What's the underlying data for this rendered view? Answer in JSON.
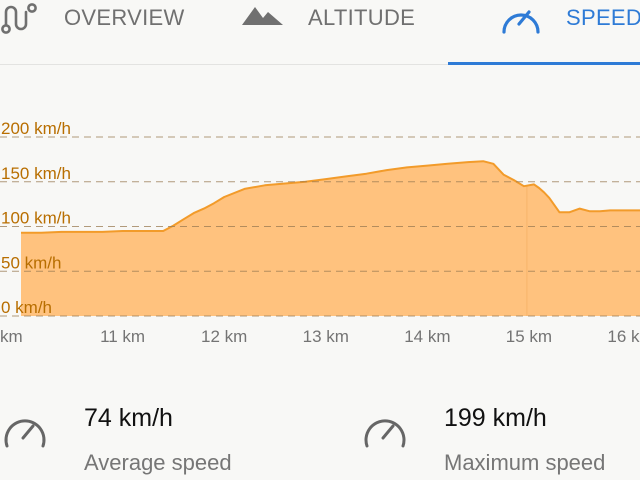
{
  "tabs": {
    "overview": {
      "label": "OVERVIEW",
      "icon": "route-icon"
    },
    "altitude": {
      "label": "ALTITUDE",
      "icon": "mountain-icon"
    },
    "speed": {
      "label": "SPEED",
      "icon": "speedometer-icon",
      "selected": true
    }
  },
  "colors": {
    "accent": "#2e7bd6",
    "fill": "#ffc27e",
    "line": "#f29b2a",
    "axis_label": "#b86e00",
    "tab_inactive": "#707070"
  },
  "chart_data": {
    "type": "area",
    "title": "",
    "xlabel": "",
    "ylabel": "",
    "x_unit": "km",
    "y_unit": "km/h",
    "xlim": [
      10.0,
      16.3
    ],
    "ylim": [
      0,
      200
    ],
    "grid": true,
    "y_ticks": [
      {
        "value": 200,
        "label": "200 km/h"
      },
      {
        "value": 150,
        "label": "150 km/h"
      },
      {
        "value": 100,
        "label": "100 km/h"
      },
      {
        "value": 50,
        "label": "50 km/h"
      },
      {
        "value": 0,
        "label": "0 km/h"
      }
    ],
    "x_ticks": [
      {
        "value": 10,
        "label": "km"
      },
      {
        "value": 11,
        "label": "11 km"
      },
      {
        "value": 12,
        "label": "12 km"
      },
      {
        "value": 13,
        "label": "13 km"
      },
      {
        "value": 14,
        "label": "14 km"
      },
      {
        "value": 15,
        "label": "15 km"
      },
      {
        "value": 16,
        "label": "16 km"
      }
    ],
    "series": [
      {
        "x": [
          10.0,
          10.2,
          10.4,
          10.6,
          10.8,
          11.0,
          11.2,
          11.4,
          11.5,
          11.6,
          11.7,
          11.8,
          11.9,
          12.0,
          12.2,
          12.4,
          12.6,
          12.8,
          13.0,
          13.2,
          13.4,
          13.6,
          13.8,
          14.0,
          14.2,
          14.4,
          14.55,
          14.65,
          14.75,
          14.85,
          14.95,
          15.05,
          15.1,
          15.15,
          15.2,
          15.3,
          15.4,
          15.5,
          15.6,
          15.7,
          15.8,
          16.0,
          16.2,
          16.3
        ],
        "y": [
          93,
          93,
          94,
          94,
          94,
          95,
          95,
          95,
          101,
          108,
          115,
          120,
          126,
          133,
          142,
          146,
          148,
          150,
          153,
          156,
          159,
          163,
          166,
          168,
          170,
          172,
          173,
          170,
          158,
          152,
          145,
          147,
          143,
          138,
          132,
          116,
          116,
          120,
          117,
          117,
          118,
          118,
          118,
          114
        ]
      }
    ]
  },
  "stats": {
    "average": {
      "value": "74 km/h",
      "caption": "Average speed",
      "icon": "speedometer-icon"
    },
    "maximum": {
      "value": "199 km/h",
      "caption": "Maximum speed",
      "icon": "speedometer-icon"
    }
  }
}
